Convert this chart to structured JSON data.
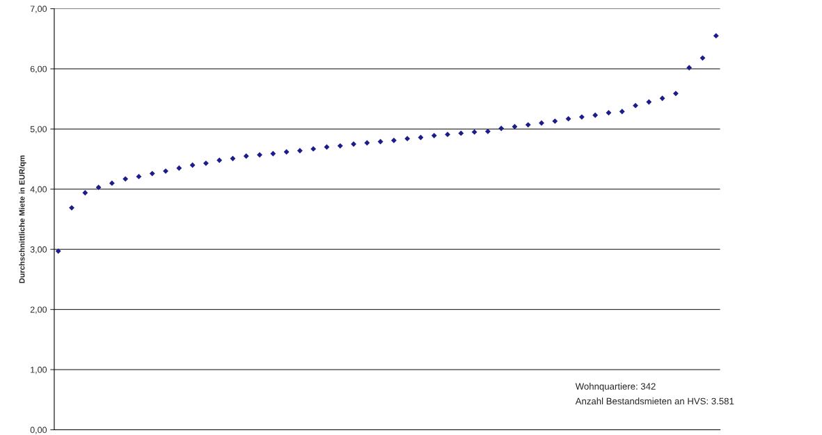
{
  "chart_data": {
    "type": "scatter",
    "ylabel": "Durchschnittliche Miete in EUR/qm",
    "categories": [
      null,
      null,
      null,
      null,
      null,
      null,
      null,
      null,
      null,
      null,
      null,
      null,
      null,
      null,
      null,
      null,
      null,
      null,
      null,
      null,
      null,
      null,
      null,
      null,
      null,
      null,
      null,
      null,
      null,
      null,
      null,
      null,
      null,
      null,
      null,
      null,
      null,
      null,
      null,
      null,
      null,
      null,
      null,
      null,
      null,
      null,
      null,
      null,
      null,
      null
    ],
    "series": [
      {
        "color": "#1c1c8a",
        "values": [
          2.97,
          3.69,
          3.94,
          4.03,
          4.1,
          4.17,
          4.21,
          4.26,
          4.3,
          4.35,
          4.4,
          4.43,
          4.48,
          4.51,
          4.55,
          4.57,
          4.59,
          4.62,
          4.64,
          4.67,
          4.7,
          4.72,
          4.75,
          4.77,
          4.79,
          4.81,
          4.84,
          4.86,
          4.89,
          4.91,
          4.93,
          4.95,
          4.96,
          5.01,
          5.04,
          5.07,
          5.1,
          5.13,
          5.17,
          5.2,
          5.23,
          5.27,
          5.29,
          5.39,
          5.45,
          5.51,
          5.59,
          6.02,
          6.18,
          6.55
        ]
      }
    ],
    "ylim": [
      0,
      7
    ],
    "yticks": [
      {
        "value": 0,
        "label": "0,00"
      },
      {
        "value": 1,
        "label": "1,00"
      },
      {
        "value": 2,
        "label": "2,00"
      },
      {
        "value": 3,
        "label": "3,00"
      },
      {
        "value": 4,
        "label": "4,00"
      },
      {
        "value": 5,
        "label": "5,00"
      },
      {
        "value": 6,
        "label": "6,00"
      },
      {
        "value": 7,
        "label": "7,00"
      }
    ],
    "tick_labels": "y",
    "grid": "y",
    "marker": "diamond",
    "annotations": [
      "Wohnquartiere: 342",
      "Anzahl Bestandsmieten an HVS: 3.581"
    ]
  }
}
